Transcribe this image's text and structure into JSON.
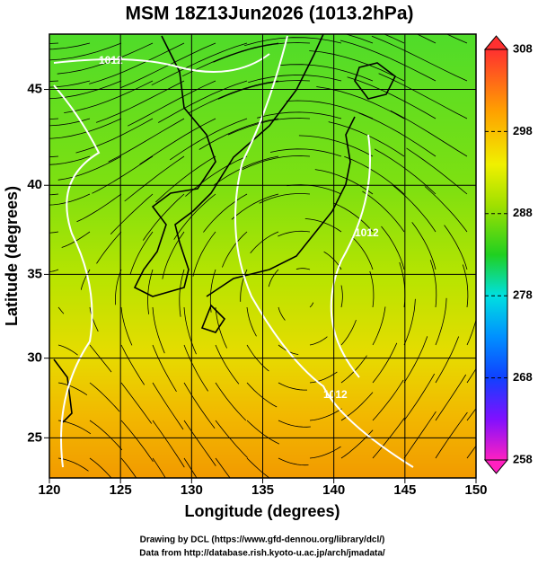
{
  "chart_data": {
    "type": "map",
    "title": "MSM 18Z13Jun2026 (1013.2hPa)",
    "x_label": "Longitude (degrees)",
    "y_label": "Latitude  (degrees)",
    "xlim": [
      120,
      150
    ],
    "xticks": [
      120,
      125,
      130,
      135,
      140,
      145,
      150
    ],
    "ylim": [
      22.4,
      47.7
    ],
    "yticks": [
      25,
      30,
      35,
      40,
      45
    ],
    "grid": true,
    "colorbar": {
      "lim": [
        258,
        308
      ],
      "ticks": [
        258,
        268,
        278,
        288,
        298,
        308
      ]
    },
    "contour_labels": [
      "1012",
      "1012",
      "1012"
    ],
    "credits": [
      "Drawing by DCL (https://www.gfd-dennou.org/library/dcl/)",
      "Data from http://database.rish.kyoto-u.ac.jp/arch/jmadata/"
    ]
  }
}
